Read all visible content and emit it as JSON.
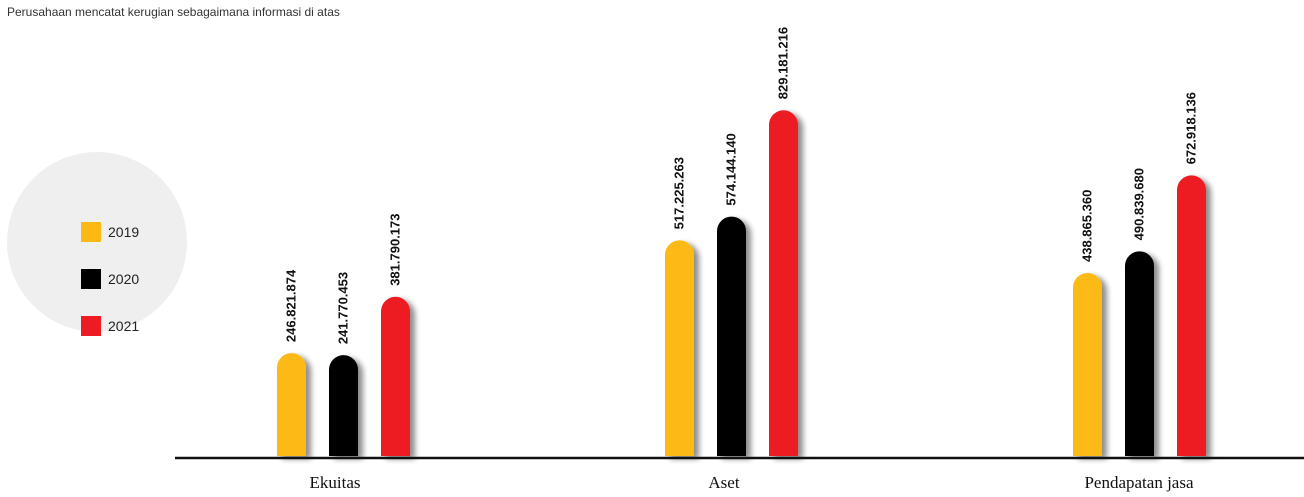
{
  "note": "Perusahaan mencatat kerugian sebagaimana informasi di atas",
  "chart_data": {
    "type": "bar",
    "categories": [
      "Ekuitas",
      "Aset",
      "Pendapatan jasa"
    ],
    "series": [
      {
        "name": "2019",
        "color": "#FDB913",
        "values": [
          246821874,
          517225263,
          438865360
        ],
        "labels": [
          "246.821.874",
          "517.225.263",
          "438.865.360"
        ]
      },
      {
        "name": "2020",
        "color": "#000000",
        "values": [
          241770453,
          574144140,
          490839680
        ],
        "labels": [
          "241.770.453",
          "574.144.140",
          "490.839.680"
        ]
      },
      {
        "name": "2021",
        "color": "#ED1C24",
        "values": [
          381790173,
          829181216,
          672918136
        ],
        "labels": [
          "381.790.173",
          "829.181.216",
          "672.918.136"
        ]
      }
    ],
    "ylim": [
      0,
      1000000000
    ],
    "grid": false,
    "legend_position": "left"
  }
}
